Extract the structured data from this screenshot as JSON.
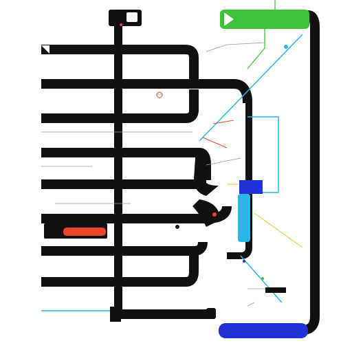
{
  "diagram": {
    "row_labels": [
      "",
      "",
      "",
      "",
      "",
      "",
      "",
      "",
      ""
    ],
    "top_banner": {
      "text_line1": "",
      "text_line2": "",
      "color": "#3ec23a"
    },
    "bottom_banner": {
      "text": "",
      "color": "#2033d6"
    },
    "callouts": [
      "",
      "",
      "",
      "",
      "",
      "",
      ""
    ],
    "colors": {
      "track": "#111111",
      "cyan": "#29b6e5",
      "green": "#3ec23a",
      "blue": "#2033d6",
      "red": "#f0452a",
      "grey": "#9a9a9a",
      "yellow": "#f0c22a"
    },
    "icons": [
      "top-device-icon",
      "red-bar-icon",
      "blue-node-icon",
      "status-dot-icon"
    ]
  }
}
